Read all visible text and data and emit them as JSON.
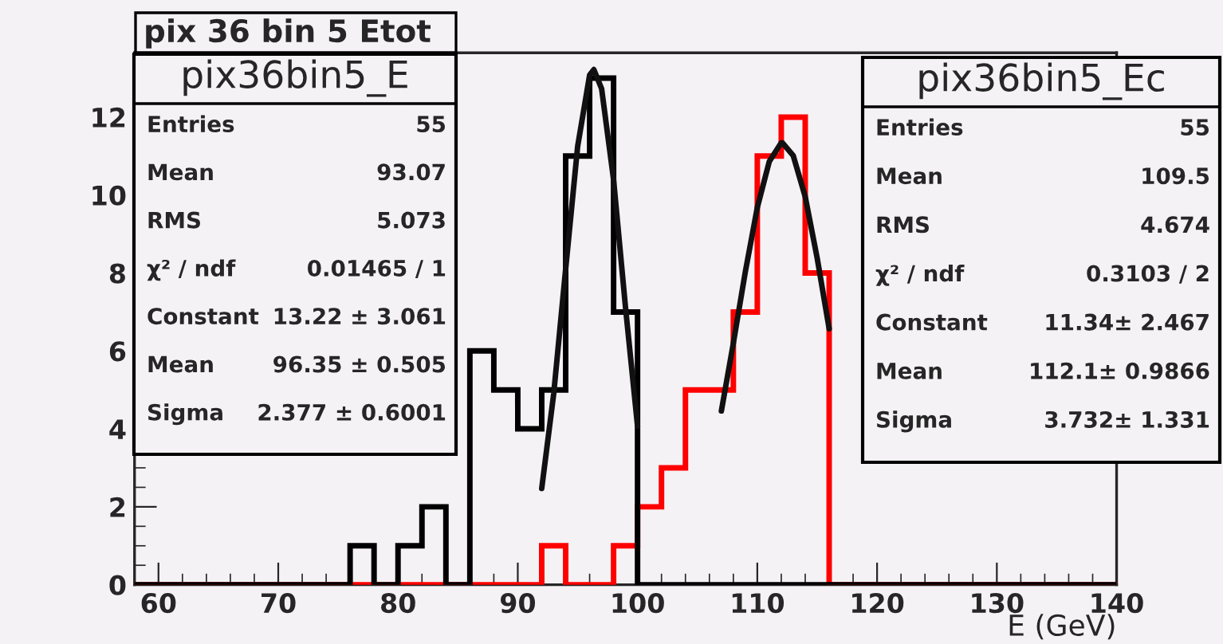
{
  "chart_data": {
    "type": "histogram",
    "title": "pix 36 bin 5 Etot",
    "xlabel": "E (GeV)",
    "bins": [
      58,
      60,
      62,
      64,
      66,
      68,
      70,
      72,
      74,
      76,
      78,
      80,
      82,
      84,
      86,
      88,
      90,
      92,
      94,
      96,
      98,
      100,
      102,
      104,
      106,
      108,
      110,
      112,
      114,
      116,
      118,
      120,
      122,
      124,
      126,
      128,
      130,
      132,
      134,
      136,
      138,
      140
    ],
    "series": [
      {
        "color": "#000000",
        "values": [
          0,
          0,
          0,
          0,
          0,
          0,
          0,
          0,
          0,
          1,
          0,
          1,
          2,
          0,
          6,
          5,
          4,
          5,
          11,
          13,
          7,
          0,
          0,
          0,
          0,
          0,
          0,
          0,
          0,
          0,
          0,
          0,
          0,
          0,
          0,
          0,
          0,
          0,
          0,
          0,
          0
        ]
      },
      {
        "color": "#ff0000",
        "values": [
          0,
          0,
          0,
          0,
          0,
          0,
          0,
          0,
          0,
          0,
          0,
          0,
          0,
          0,
          0,
          0,
          0,
          1,
          0,
          0,
          1,
          2,
          3,
          5,
          5,
          7,
          11,
          12,
          8,
          0,
          0,
          0,
          0,
          0,
          0,
          0,
          0,
          0,
          0,
          0,
          0
        ]
      },
      {
        "type": "line",
        "color": "#111111",
        "x": [
          92,
          93,
          94,
          95,
          96,
          96.35,
          97,
          98,
          99,
          100
        ],
        "values": [
          2.47,
          4.9,
          8.11,
          11.25,
          13.08,
          13.22,
          12.73,
          10.39,
          7.1,
          4.07
        ]
      },
      {
        "type": "line",
        "color": "#111111",
        "x": [
          107,
          108,
          109,
          110,
          111,
          112,
          112.1,
          113,
          114,
          115,
          116
        ],
        "values": [
          4.46,
          6.2,
          8.03,
          9.68,
          10.86,
          11.34,
          11.34,
          11.01,
          9.96,
          8.38,
          6.57
        ]
      }
    ],
    "xlim": [
      58,
      140
    ],
    "ylim": [
      0,
      13.65
    ],
    "xticks": [
      60,
      70,
      80,
      90,
      100,
      110,
      120,
      130,
      140
    ],
    "yticks": [
      0,
      2,
      4,
      6,
      8,
      10,
      12
    ],
    "grid": false,
    "legend": false,
    "annotations": [
      "pix36bin5_E",
      "Entries",
      "55",
      "Mean",
      "93.07",
      "RMS",
      "5.073",
      "χ² / ndf",
      "0.01465 / 1",
      "Constant",
      "13.22 ± 3.061",
      "Mean",
      "96.35 ± 0.505",
      "Sigma",
      "2.377 ± 0.6001",
      "pix36bin5_Ec",
      "Entries",
      "55",
      "Mean",
      "109.5",
      "RMS",
      "4.674",
      "χ² / ndf",
      "0.3103 / 2",
      "Constant",
      "11.34± 2.467",
      "Mean",
      "112.1± 0.9866",
      "Sigma",
      "3.732± 1.331"
    ]
  }
}
